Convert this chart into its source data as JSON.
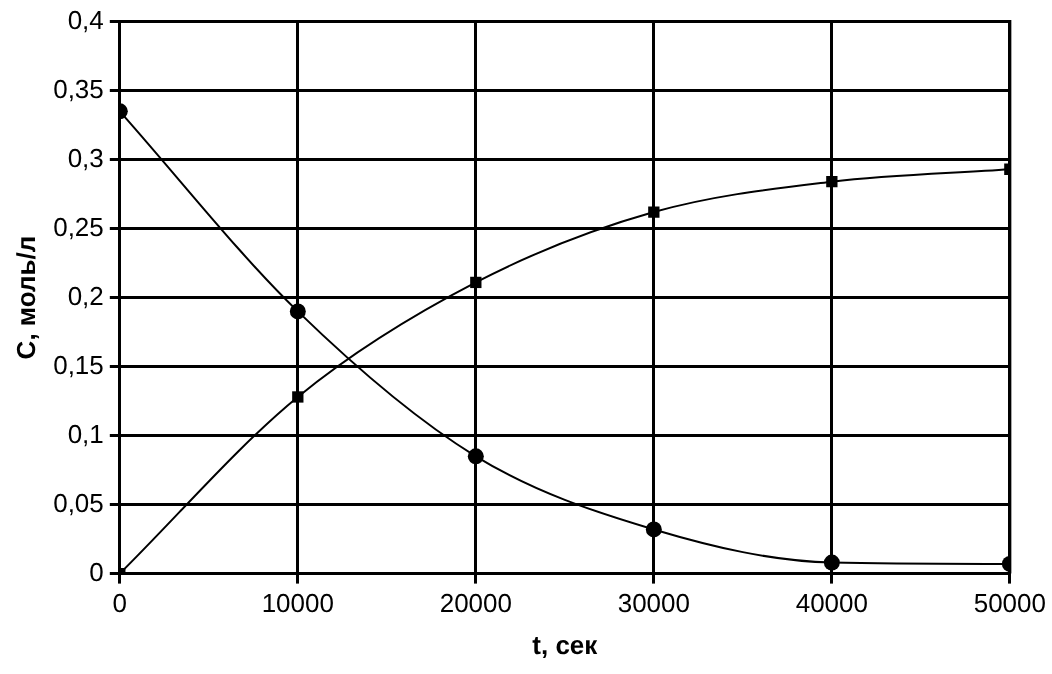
{
  "chart_data": {
    "type": "line",
    "xlabel": "t, сек",
    "ylabel": "С, моль/л",
    "x": [
      0,
      10000,
      20000,
      30000,
      40000,
      50000
    ],
    "series": [
      {
        "color": "#000000",
        "marker": "circle",
        "values": [
          0.335,
          0.19,
          0.085,
          0.032,
          0.008,
          0.007
        ]
      },
      {
        "color": "#000000",
        "marker": "square",
        "values": [
          0,
          0.128,
          0.211,
          0.262,
          0.284,
          0.293
        ]
      }
    ],
    "xlim": [
      0,
      50000
    ],
    "xticks": [
      0,
      10000,
      20000,
      30000,
      40000,
      50000
    ],
    "ylim": [
      0,
      0.4
    ],
    "yticks": [
      0,
      {
        "value": 0.05,
        "label": "0,05"
      },
      {
        "value": 0.1,
        "label": "0,1"
      },
      {
        "value": 0.15,
        "label": "0,15"
      },
      {
        "value": 0.2,
        "label": "0,2"
      },
      {
        "value": 0.25,
        "label": "0,25"
      },
      {
        "value": 0.3,
        "label": "0,3"
      },
      {
        "value": 0.35,
        "label": "0,35"
      },
      {
        "value": 0.4,
        "label": "0,4"
      }
    ],
    "grid": true,
    "legend": false,
    "line_style": "solid"
  }
}
